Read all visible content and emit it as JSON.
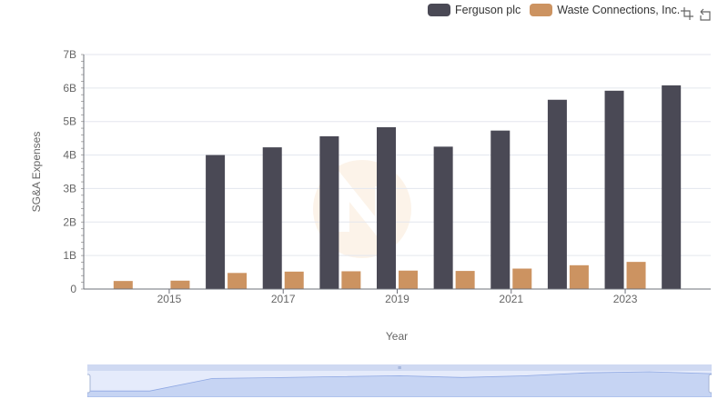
{
  "legend": {
    "items": [
      {
        "label": "Ferguson plc",
        "color": "#4a4955"
      },
      {
        "label": "Waste Connections, Inc.",
        "color": "#cc9361"
      }
    ]
  },
  "toolbox": {
    "icons": [
      "zoom-select-icon",
      "zoom-reset-icon"
    ]
  },
  "chart_data": {
    "type": "bar",
    "title": "",
    "xlabel": "Year",
    "ylabel": "SG&A Expenses",
    "categories": [
      "2014",
      "2015",
      "2016",
      "2017",
      "2018",
      "2019",
      "2020",
      "2021",
      "2022",
      "2023",
      "2024"
    ],
    "x_tick_labels": [
      "2015",
      "2017",
      "2019",
      "2021",
      "2023"
    ],
    "y_tick_labels": [
      "0",
      "1B",
      "2B",
      "3B",
      "4B",
      "5B",
      "6B",
      "7B"
    ],
    "ylim": [
      0,
      7000000000
    ],
    "grid": true,
    "legend_position": "top-right",
    "series": [
      {
        "name": "Ferguson plc",
        "color": "#4a4955",
        "values": [
          null,
          null,
          4000000000,
          4230000000,
          4560000000,
          4830000000,
          4250000000,
          4730000000,
          5650000000,
          5920000000,
          6080000000
        ]
      },
      {
        "name": "Waste Connections, Inc.",
        "color": "#cc9361",
        "values": [
          240000000,
          250000000,
          480000000,
          520000000,
          530000000,
          550000000,
          540000000,
          610000000,
          710000000,
          810000000,
          null
        ]
      }
    ]
  },
  "zoom_slider": {
    "handle_label": "≡"
  }
}
